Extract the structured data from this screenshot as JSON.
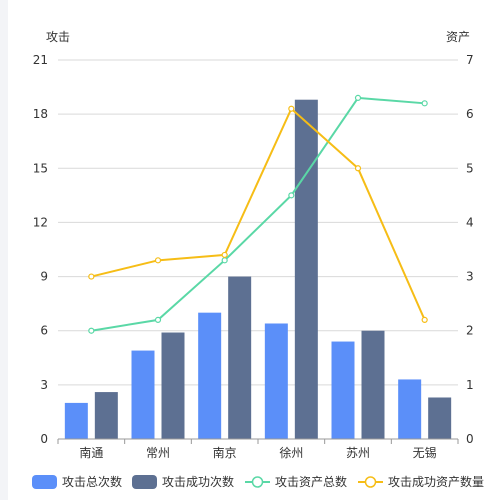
{
  "chart_data": {
    "type": "bar",
    "categories": [
      "南通",
      "常州",
      "南京",
      "徐州",
      "苏州",
      "无锡"
    ],
    "left_axis": {
      "title": "攻击",
      "min": 0,
      "max": 21,
      "ticks": [
        "0",
        "3",
        "6",
        "9",
        "12",
        "15",
        "18",
        "21"
      ]
    },
    "right_axis": {
      "title": "资产",
      "min": 0,
      "max": 7,
      "ticks": [
        "0",
        "1",
        "2",
        "3",
        "4",
        "5",
        "6",
        "7"
      ]
    },
    "series": [
      {
        "name": "攻击总次数",
        "kind": "bar",
        "axis": "left",
        "color": "#5b8ff9",
        "values": [
          2,
          4.9,
          7,
          6.4,
          5.4,
          3.3
        ]
      },
      {
        "name": "攻击成功次数",
        "kind": "bar",
        "axis": "left",
        "color": "#5d7092",
        "values": [
          2.6,
          5.9,
          9,
          18.8,
          6,
          2.3
        ]
      },
      {
        "name": "攻击资产总数",
        "kind": "line",
        "axis": "right",
        "color": "#5ad8a6",
        "values": [
          2,
          2.2,
          3.3,
          4.5,
          6.3,
          6.2
        ]
      },
      {
        "name": "攻击成功资产数量",
        "kind": "line",
        "axis": "right",
        "color": "#f6bd16",
        "values": [
          3,
          3.3,
          3.4,
          6.1,
          5,
          2.2
        ]
      }
    ],
    "grid": true,
    "legend_position": "bottom"
  }
}
